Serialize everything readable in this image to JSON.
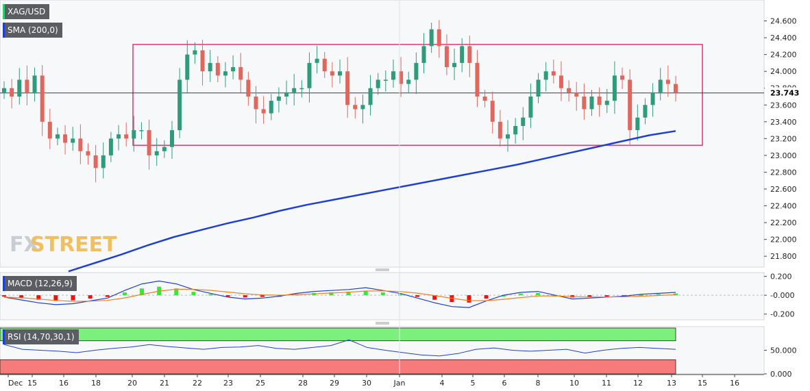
{
  "symbol": "XAG/USD",
  "indicators": {
    "sma": "SMA (200,0)",
    "macd": "MACD (12,26,9)",
    "rsi": "RSI (14,70,30,1)"
  },
  "current_price": "23.743",
  "watermark": {
    "part1": "FX",
    "part2": "STREET"
  },
  "colors": {
    "up": "#2e9b7a",
    "down": "#e0675d",
    "sma": "#1f3fd1",
    "range_box": "#e0356f",
    "macd_pos": "#39e639",
    "macd_neg": "#ee1111",
    "signal": "#f08020",
    "rsi_line": "#1f3fd1",
    "rsi_overbought": "#7cf07c",
    "rsi_oversold": "#f77b7b"
  },
  "price_axis": [
    "24.600",
    "24.400",
    "24.200",
    "24.000",
    "23.800",
    "23.600",
    "23.400",
    "23.200",
    "23.000",
    "22.800",
    "22.600",
    "22.400",
    "22.200",
    "22.000",
    "21.800"
  ],
  "macd_axis": [
    "0.200",
    "-0.000",
    "-0.200"
  ],
  "rsi_axis": [
    "50.000",
    "0.000"
  ],
  "time_axis": [
    "Dec",
    "15",
    "16",
    "18",
    "20",
    "21",
    "22",
    "23",
    "25",
    "28",
    "29",
    "30",
    "Jan",
    "4",
    "5",
    "6",
    "8",
    "10",
    "11",
    "12",
    "13",
    "15",
    "16"
  ],
  "chart_data": {
    "type": "candlestick",
    "title": "XAG/USD",
    "ylim": [
      21.72,
      24.8
    ],
    "closes": [
      23.8,
      23.7,
      23.9,
      23.75,
      23.95,
      23.4,
      23.2,
      23.25,
      23.15,
      23.2,
      23.05,
      23.0,
      22.85,
      23.0,
      23.2,
      23.25,
      23.2,
      23.3,
      23.3,
      23.0,
      23.05,
      23.1,
      23.3,
      23.9,
      24.2,
      24.25,
      24.0,
      24.1,
      23.95,
      24.0,
      24.05,
      23.9,
      23.7,
      23.55,
      23.5,
      23.65,
      23.7,
      23.75,
      23.8,
      23.8,
      24.1,
      24.15,
      24.0,
      23.95,
      24.0,
      23.6,
      23.55,
      23.6,
      23.8,
      23.9,
      23.9,
      24.0,
      23.85,
      23.9,
      24.1,
      24.3,
      24.5,
      24.3,
      24.05,
      24.1,
      24.3,
      24.1,
      23.7,
      23.65,
      23.4,
      23.2,
      23.25,
      23.35,
      23.45,
      23.7,
      23.9,
      24.0,
      23.95,
      23.8,
      23.75,
      23.7,
      23.55,
      23.7,
      23.6,
      23.65,
      23.95,
      23.9,
      23.3,
      23.45,
      23.6,
      23.75,
      23.9,
      23.85,
      23.75
    ],
    "sma_200": [
      21.62,
      21.72,
      21.82,
      21.93,
      22.03,
      22.11,
      22.19,
      22.26,
      22.34,
      22.41,
      22.47,
      22.53,
      22.59,
      22.65,
      22.71,
      22.77,
      22.83,
      22.89,
      22.96,
      23.03,
      23.1,
      23.17,
      23.24,
      23.29
    ],
    "range_box": {
      "top": 24.32,
      "bottom": 23.12
    },
    "macd": [
      -0.02,
      -0.05,
      -0.08,
      -0.1,
      -0.09,
      -0.06,
      -0.03,
      0.05,
      0.12,
      0.15,
      0.12,
      0.06,
      0.02,
      -0.02,
      -0.04,
      -0.03,
      -0.01,
      0.02,
      0.04,
      0.05,
      0.06,
      0.08,
      0.05,
      0.02,
      -0.03,
      -0.08,
      -0.12,
      -0.13,
      -0.06,
      0.0,
      0.03,
      0.04,
      0.0,
      -0.04,
      -0.03,
      -0.02,
      -0.01,
      0.01,
      0.02,
      0.03
    ],
    "rsi": [
      62,
      52,
      50,
      48,
      45,
      50,
      54,
      57,
      62,
      58,
      55,
      52,
      56,
      57,
      60,
      54,
      52,
      56,
      60,
      72,
      56,
      50,
      45,
      40,
      38,
      43,
      52,
      55,
      50,
      48,
      50,
      52,
      44,
      50,
      54,
      56,
      54,
      52
    ]
  }
}
